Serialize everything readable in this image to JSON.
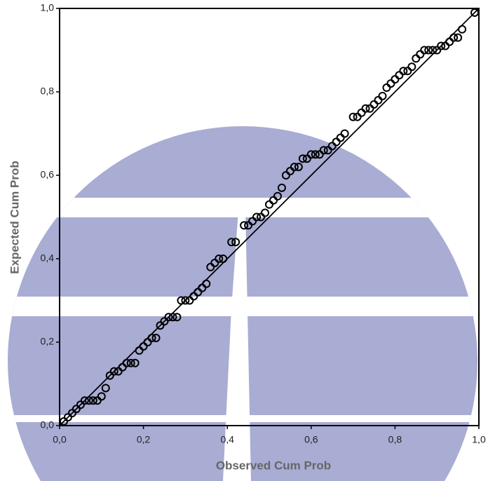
{
  "chart_data": {
    "type": "scatter",
    "x_label": "Observed Cum Prob",
    "y_label": "Expected Cum Prob",
    "xlim": [
      0,
      1
    ],
    "ylim": [
      0,
      1
    ],
    "xticks": [
      {
        "value": 0,
        "label": "0,0"
      },
      {
        "value": 0.2,
        "label": "0,2"
      },
      {
        "value": 0.4,
        "label": "0,4"
      },
      {
        "value": 0.6,
        "label": "0,6"
      },
      {
        "value": 0.8,
        "label": "0,8"
      },
      {
        "value": 1,
        "label": "1,0"
      }
    ],
    "yticks": [
      {
        "value": 0,
        "label": "0,0"
      },
      {
        "value": 0.2,
        "label": "0,2"
      },
      {
        "value": 0.4,
        "label": "0,4"
      },
      {
        "value": 0.6,
        "label": "0,6"
      },
      {
        "value": 0.8,
        "label": "0,8"
      },
      {
        "value": 1,
        "label": "1,0"
      }
    ],
    "reference_line": {
      "x": [
        0,
        1
      ],
      "y": [
        0,
        1
      ]
    },
    "color": "#000000",
    "x": [
      0.01,
      0.02,
      0.03,
      0.04,
      0.05,
      0.06,
      0.07,
      0.08,
      0.09,
      0.1,
      0.11,
      0.12,
      0.13,
      0.14,
      0.15,
      0.16,
      0.17,
      0.18,
      0.19,
      0.2,
      0.21,
      0.22,
      0.23,
      0.24,
      0.25,
      0.26,
      0.27,
      0.28,
      0.29,
      0.3,
      0.31,
      0.32,
      0.33,
      0.34,
      0.35,
      0.36,
      0.37,
      0.38,
      0.39,
      0.41,
      0.42,
      0.44,
      0.45,
      0.46,
      0.47,
      0.48,
      0.49,
      0.5,
      0.51,
      0.52,
      0.53,
      0.54,
      0.55,
      0.56,
      0.57,
      0.58,
      0.59,
      0.6,
      0.61,
      0.62,
      0.63,
      0.64,
      0.65,
      0.66,
      0.67,
      0.68,
      0.7,
      0.71,
      0.72,
      0.73,
      0.74,
      0.75,
      0.76,
      0.77,
      0.78,
      0.79,
      0.8,
      0.81,
      0.82,
      0.83,
      0.84,
      0.85,
      0.86,
      0.87,
      0.88,
      0.89,
      0.9,
      0.91,
      0.92,
      0.93,
      0.94,
      0.95,
      0.96,
      0.99
    ],
    "values": [
      0.01,
      0.02,
      0.03,
      0.04,
      0.05,
      0.06,
      0.06,
      0.06,
      0.06,
      0.07,
      0.09,
      0.12,
      0.13,
      0.13,
      0.14,
      0.15,
      0.15,
      0.15,
      0.18,
      0.19,
      0.2,
      0.21,
      0.21,
      0.24,
      0.25,
      0.26,
      0.26,
      0.26,
      0.3,
      0.3,
      0.3,
      0.31,
      0.32,
      0.33,
      0.34,
      0.38,
      0.39,
      0.4,
      0.4,
      0.44,
      0.44,
      0.48,
      0.48,
      0.49,
      0.5,
      0.5,
      0.51,
      0.53,
      0.54,
      0.55,
      0.57,
      0.6,
      0.61,
      0.62,
      0.62,
      0.64,
      0.64,
      0.65,
      0.65,
      0.65,
      0.66,
      0.66,
      0.67,
      0.68,
      0.69,
      0.7,
      0.74,
      0.74,
      0.75,
      0.76,
      0.76,
      0.77,
      0.78,
      0.79,
      0.81,
      0.82,
      0.83,
      0.84,
      0.85,
      0.85,
      0.86,
      0.88,
      0.89,
      0.9,
      0.9,
      0.9,
      0.9,
      0.91,
      0.91,
      0.92,
      0.93,
      0.93,
      0.95,
      0.99
    ]
  }
}
